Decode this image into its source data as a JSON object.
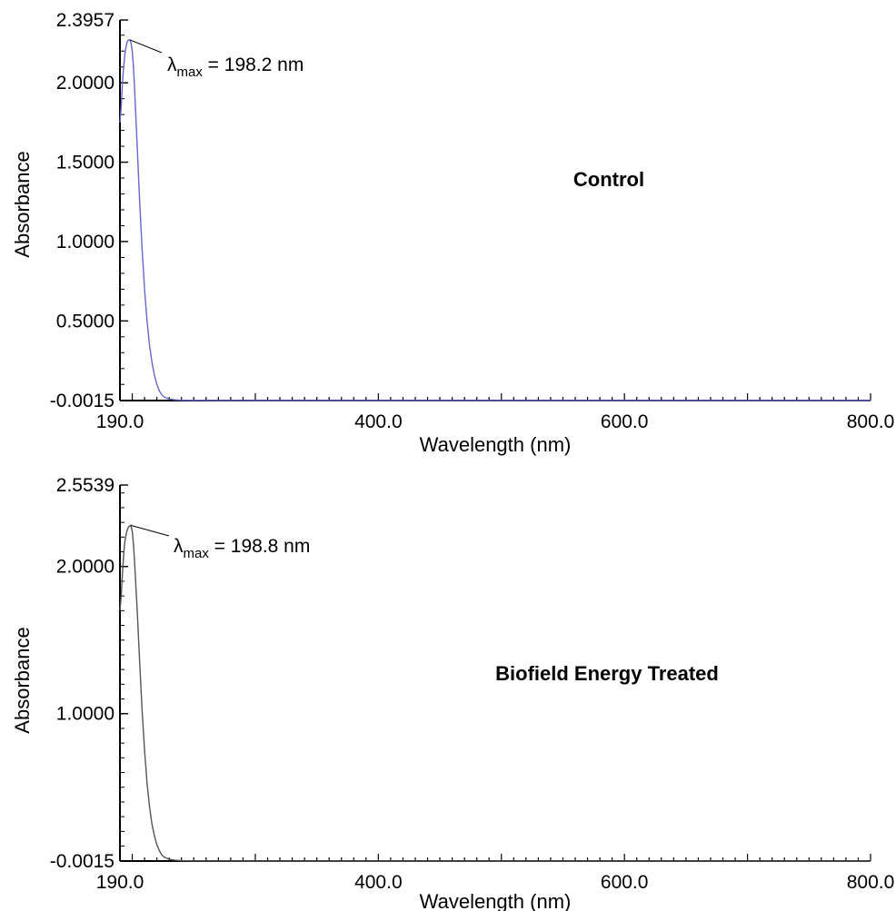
{
  "chart_data": [
    {
      "type": "line",
      "panel_label": "Control",
      "xlabel": "Wavelength (nm)",
      "ylabel": "Absorbance",
      "xlim": [
        190.0,
        800.0
      ],
      "ylim": [
        -0.0015,
        2.3957
      ],
      "x_ticks": [
        "190.0",
        "400.0",
        "600.0",
        "800.0"
      ],
      "y_ticks": [
        "-0.0015",
        "0.5000",
        "1.0000",
        "1.5000",
        "2.0000",
        "2.3957"
      ],
      "annotation": {
        "symbol": "λ",
        "subscript": "max",
        "text": " = 198.2 nm"
      },
      "peak": {
        "x": 198.2,
        "y": 2.27
      },
      "line_color": "#6666cc",
      "series": [
        {
          "x": [
            190.0,
            191.0,
            192.0,
            193.0,
            194.0,
            195.0,
            196.0,
            197.0,
            198.2,
            199.0,
            200.0,
            201.0,
            202.0,
            204.0,
            206.0,
            208.0,
            210.0,
            212.0,
            214.0,
            216.0,
            218.0,
            220.0,
            222.0,
            224.0,
            226.0,
            230.0,
            235.0,
            240.0,
            250.0,
            270.0,
            300.0,
            400.0,
            500.0,
            600.0,
            700.0,
            800.0
          ],
          "y": [
            1.75,
            1.85,
            2.0,
            2.1,
            2.18,
            2.23,
            2.26,
            2.27,
            2.27,
            2.25,
            2.2,
            2.1,
            1.95,
            1.6,
            1.25,
            0.95,
            0.7,
            0.5,
            0.35,
            0.24,
            0.16,
            0.1,
            0.06,
            0.035,
            0.02,
            0.008,
            0.003,
            0.001,
            0.0,
            -0.001,
            -0.0015,
            -0.0015,
            -0.0015,
            -0.0015,
            -0.0015,
            -0.0015
          ]
        }
      ]
    },
    {
      "type": "line",
      "panel_label": "Biofield Energy Treated",
      "xlabel": "Wavelength (nm)",
      "ylabel": "Absorbance",
      "xlim": [
        190.0,
        800.0
      ],
      "ylim": [
        -0.0015,
        2.5539
      ],
      "x_ticks": [
        "190.0",
        "400.0",
        "600.0",
        "800.0"
      ],
      "y_ticks": [
        "-0.0015",
        "1.0000",
        "2.0000",
        "2.5539"
      ],
      "annotation": {
        "symbol": "λ",
        "subscript": "max",
        "text": " = 198.8 nm"
      },
      "peak": {
        "x": 198.8,
        "y": 2.28
      },
      "line_color": "#555555",
      "series": [
        {
          "x": [
            190.0,
            191.0,
            192.0,
            193.0,
            194.0,
            195.0,
            196.0,
            197.0,
            198.8,
            200.0,
            201.0,
            202.0,
            204.0,
            206.0,
            208.0,
            210.0,
            212.0,
            214.0,
            216.0,
            218.0,
            220.0,
            222.0,
            224.0,
            226.0,
            230.0,
            235.0,
            240.0,
            250.0,
            270.0,
            300.0,
            400.0,
            500.0,
            600.0,
            700.0,
            800.0
          ],
          "y": [
            1.7,
            1.8,
            1.95,
            2.08,
            2.17,
            2.22,
            2.25,
            2.27,
            2.28,
            2.24,
            2.15,
            2.02,
            1.7,
            1.35,
            1.02,
            0.75,
            0.53,
            0.37,
            0.25,
            0.17,
            0.11,
            0.07,
            0.04,
            0.025,
            0.01,
            0.004,
            0.001,
            0.0,
            -0.001,
            -0.0015,
            -0.0015,
            -0.0015,
            -0.0015,
            -0.0015,
            -0.0015
          ]
        }
      ]
    }
  ]
}
